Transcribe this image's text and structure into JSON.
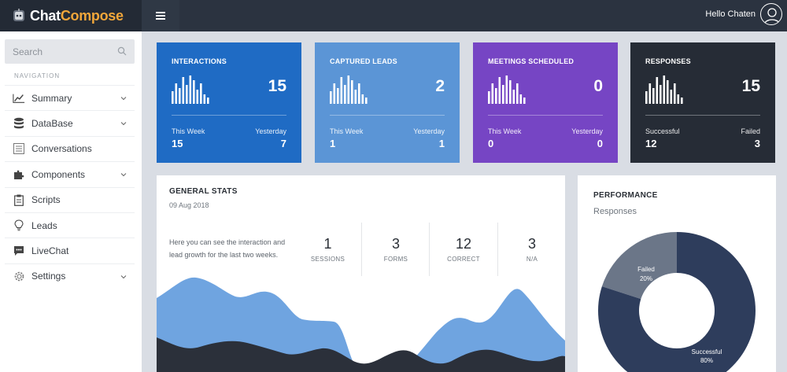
{
  "app": {
    "brand_part1": "Chat",
    "brand_part2": "Compose",
    "greeting": "Hello Chaten"
  },
  "sidebar": {
    "search_placeholder": "Search",
    "nav_heading": "NAVIGATION",
    "items": [
      {
        "label": "Summary",
        "icon": "line-chart-icon",
        "has_submenu": true
      },
      {
        "label": "DataBase",
        "icon": "database-icon",
        "has_submenu": true
      },
      {
        "label": "Conversations",
        "icon": "list-icon",
        "has_submenu": false
      },
      {
        "label": "Components",
        "icon": "puzzle-icon",
        "has_submenu": true
      },
      {
        "label": "Scripts",
        "icon": "clipboard-icon",
        "has_submenu": false
      },
      {
        "label": "Leads",
        "icon": "lightbulb-icon",
        "has_submenu": false
      },
      {
        "label": "LiveChat",
        "icon": "chat-bubble-icon",
        "has_submenu": false
      },
      {
        "label": "Settings",
        "icon": "gear-icon",
        "has_submenu": true
      }
    ]
  },
  "cards": [
    {
      "title": "INTERACTIONS",
      "value": "15",
      "left_label": "This Week",
      "left_value": "15",
      "right_label": "Yesterday",
      "right_value": "7",
      "color": "#1f6bc4"
    },
    {
      "title": "CAPTURED LEADS",
      "value": "2",
      "left_label": "This Week",
      "left_value": "1",
      "right_label": "Yesterday",
      "right_value": "1",
      "color": "#5b95d6"
    },
    {
      "title": "MEETINGS SCHEDULED",
      "value": "0",
      "left_label": "This Week",
      "left_value": "0",
      "right_label": "Yesterday",
      "right_value": "0",
      "color": "#7645c4"
    },
    {
      "title": "RESPONSES",
      "value": "15",
      "left_label": "Successful",
      "left_value": "12",
      "right_label": "Failed",
      "right_value": "3",
      "color": "#262c36"
    }
  ],
  "general_stats": {
    "title": "GENERAL STATS",
    "date": "09 Aug 2018",
    "description": "Here you can see the interaction and lead growth for the last two weeks.",
    "metrics": [
      {
        "value": "1",
        "label": "SESSIONS"
      },
      {
        "value": "3",
        "label": "FORMS"
      },
      {
        "value": "12",
        "label": "CORRECT"
      },
      {
        "value": "3",
        "label": "N/A"
      }
    ],
    "area_colors": {
      "front": "#6fa4e0",
      "back": "#2b303a"
    }
  },
  "performance": {
    "title": "PERFORMANCE",
    "subtitle": "Responses",
    "chart_data": {
      "type": "pie",
      "categories": [
        "Failed",
        "Successful"
      ],
      "values": [
        20,
        80
      ],
      "labels": [
        "Failed\n20%",
        "Successful\n80%"
      ],
      "colors": [
        "#6b7688",
        "#2e3d5c"
      ]
    },
    "failed_label": "Failed",
    "failed_pct": "20%",
    "success_label": "Successful",
    "success_pct": "80%"
  }
}
